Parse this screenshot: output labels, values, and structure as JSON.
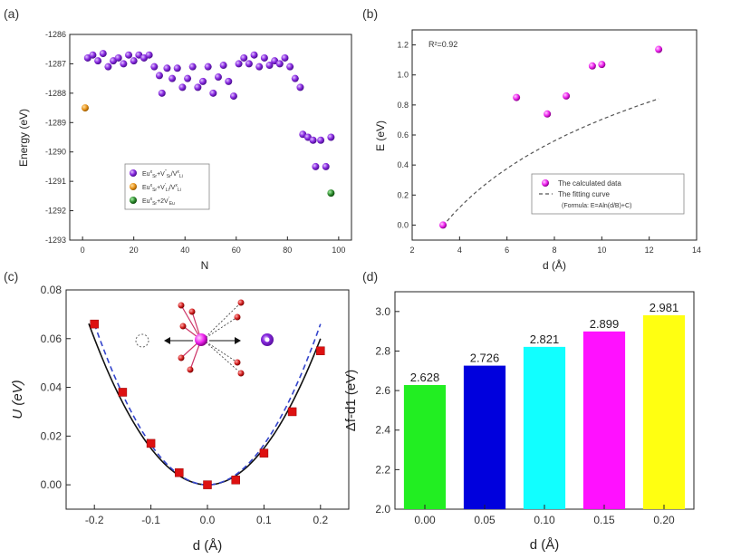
{
  "figure_labels": {
    "a": "(a)",
    "b": "(b)",
    "c": "(c)",
    "d": "(d)"
  },
  "chart_data": [
    {
      "id": "a",
      "type": "scatter",
      "xlabel": "N",
      "ylabel": "Energy (eV)",
      "xlim": [
        -5,
        105
      ],
      "ylim": [
        -1293,
        -1286
      ],
      "x_ticks": [
        0,
        20,
        40,
        60,
        80,
        100
      ],
      "y_ticks": [
        -1293,
        -1292,
        -1291,
        -1290,
        -1289,
        -1288,
        -1287,
        -1286
      ],
      "legend_position": "bottom-center",
      "series": [
        {
          "name": "Eu_Sr^x + V_Sr'' / V_Li^x",
          "color": "#8a2be2",
          "points": [
            [
              2,
              -1286.8
            ],
            [
              4,
              -1286.7
            ],
            [
              6,
              -1286.9
            ],
            [
              8,
              -1286.65
            ],
            [
              10,
              -1287.1
            ],
            [
              12,
              -1286.9
            ],
            [
              14,
              -1286.8
            ],
            [
              16,
              -1287.0
            ],
            [
              18,
              -1286.7
            ],
            [
              20,
              -1286.9
            ],
            [
              22,
              -1286.7
            ],
            [
              24,
              -1286.8
            ],
            [
              26,
              -1286.7
            ],
            [
              28,
              -1287.1
            ],
            [
              30,
              -1287.4
            ],
            [
              31,
              -1288.0
            ],
            [
              33,
              -1287.15
            ],
            [
              35,
              -1287.5
            ],
            [
              37,
              -1287.15
            ],
            [
              39,
              -1287.8
            ],
            [
              41,
              -1287.5
            ],
            [
              43,
              -1287.1
            ],
            [
              45,
              -1287.8
            ],
            [
              47,
              -1287.6
            ],
            [
              49,
              -1287.1
            ],
            [
              51,
              -1288.0
            ],
            [
              53,
              -1287.45
            ],
            [
              55,
              -1287.05
            ],
            [
              57,
              -1287.6
            ],
            [
              59,
              -1288.1
            ],
            [
              61,
              -1287.0
            ],
            [
              63,
              -1286.8
            ],
            [
              65,
              -1287.0
            ],
            [
              67,
              -1286.7
            ],
            [
              69,
              -1287.1
            ],
            [
              71,
              -1286.8
            ],
            [
              73,
              -1287.05
            ],
            [
              75,
              -1286.9
            ],
            [
              77,
              -1287.0
            ],
            [
              79,
              -1286.8
            ],
            [
              81,
              -1287.1
            ],
            [
              83,
              -1287.5
            ],
            [
              85,
              -1287.8
            ],
            [
              86,
              -1289.4
            ],
            [
              88,
              -1289.5
            ],
            [
              90,
              -1289.6
            ],
            [
              91,
              -1290.5
            ],
            [
              93,
              -1289.6
            ],
            [
              95,
              -1290.5
            ],
            [
              97,
              -1289.5
            ]
          ]
        },
        {
          "name": "Eu_Sr^x + V_Li' / V_Li^x",
          "color": "#e8931a",
          "points": [
            [
              1,
              -1288.5
            ]
          ]
        },
        {
          "name": "Eu_Sr^x + 2V_Eu'",
          "color": "#2e8b2e",
          "points": [
            [
              97,
              -1291.4
            ]
          ]
        }
      ]
    },
    {
      "id": "b",
      "type": "scatter",
      "xlabel": "d (Å)",
      "ylabel": "E (eV)",
      "xlim": [
        2,
        14
      ],
      "ylim": [
        -0.1,
        1.3
      ],
      "x_ticks": [
        2,
        4,
        6,
        8,
        10,
        12,
        14
      ],
      "y_ticks": [
        0.0,
        0.2,
        0.4,
        0.6,
        0.8,
        1.0,
        1.2
      ],
      "annotation": "R²=0.92",
      "points": [
        [
          3.3,
          0.0
        ],
        [
          6.4,
          0.85
        ],
        [
          7.7,
          0.74
        ],
        [
          8.5,
          0.86
        ],
        [
          9.6,
          1.06
        ],
        [
          10.0,
          1.07
        ],
        [
          12.4,
          1.17
        ]
      ],
      "fit_curve": {
        "A": 0.64,
        "B": 2.94,
        "C": -0.08
      },
      "legend_position": "bottom-right",
      "legend": [
        "The calculated data",
        "The fitting curve",
        "(Formula: E=Aln(d/B)+C)"
      ]
    },
    {
      "id": "c",
      "type": "line",
      "xlabel": "d (Å)",
      "ylabel": "U (eV)",
      "xlim": [
        -0.25,
        0.25
      ],
      "ylim": [
        -0.01,
        0.08
      ],
      "x_ticks": [
        -0.2,
        -0.1,
        0.0,
        0.1,
        0.2
      ],
      "x_tick_labels": [
        "-0.2",
        "-0.1",
        "0.0",
        "0.1",
        "0.2"
      ],
      "y_ticks": [
        0.0,
        0.02,
        0.04,
        0.06,
        0.08
      ],
      "y_tick_labels": [
        "0.00",
        "0.02",
        "0.04",
        "0.06",
        "0.08"
      ],
      "points": [
        [
          -0.2,
          0.066
        ],
        [
          -0.15,
          0.038
        ],
        [
          -0.1,
          0.017
        ],
        [
          -0.05,
          0.005
        ],
        [
          0.0,
          0.0
        ],
        [
          0.05,
          0.002
        ],
        [
          0.1,
          0.013
        ],
        [
          0.15,
          0.03
        ],
        [
          0.2,
          0.055
        ]
      ],
      "curves": {
        "solid_coef": 1.5,
        "dashed_coef": 1.65
      }
    },
    {
      "id": "d",
      "type": "bar",
      "xlabel": "d (Å)",
      "ylabel": "Δf-d1 (eV)",
      "ylim": [
        2.0,
        3.1
      ],
      "y_ticks": [
        2.0,
        2.2,
        2.4,
        2.6,
        2.8,
        3.0
      ],
      "y_tick_labels": [
        "2.0",
        "2.2",
        "2.4",
        "2.6",
        "2.8",
        "3.0"
      ],
      "categories": [
        "0.00",
        "0.05",
        "0.10",
        "0.15",
        "0.20"
      ],
      "values": [
        2.628,
        2.726,
        2.821,
        2.899,
        2.981
      ],
      "value_labels": [
        "2.628",
        "2.726",
        "2.821",
        "2.899",
        "2.981"
      ],
      "colors": [
        "#22ee22",
        "#0000dd",
        "#11ffff",
        "#ff11ff",
        "#ffff11"
      ]
    }
  ]
}
